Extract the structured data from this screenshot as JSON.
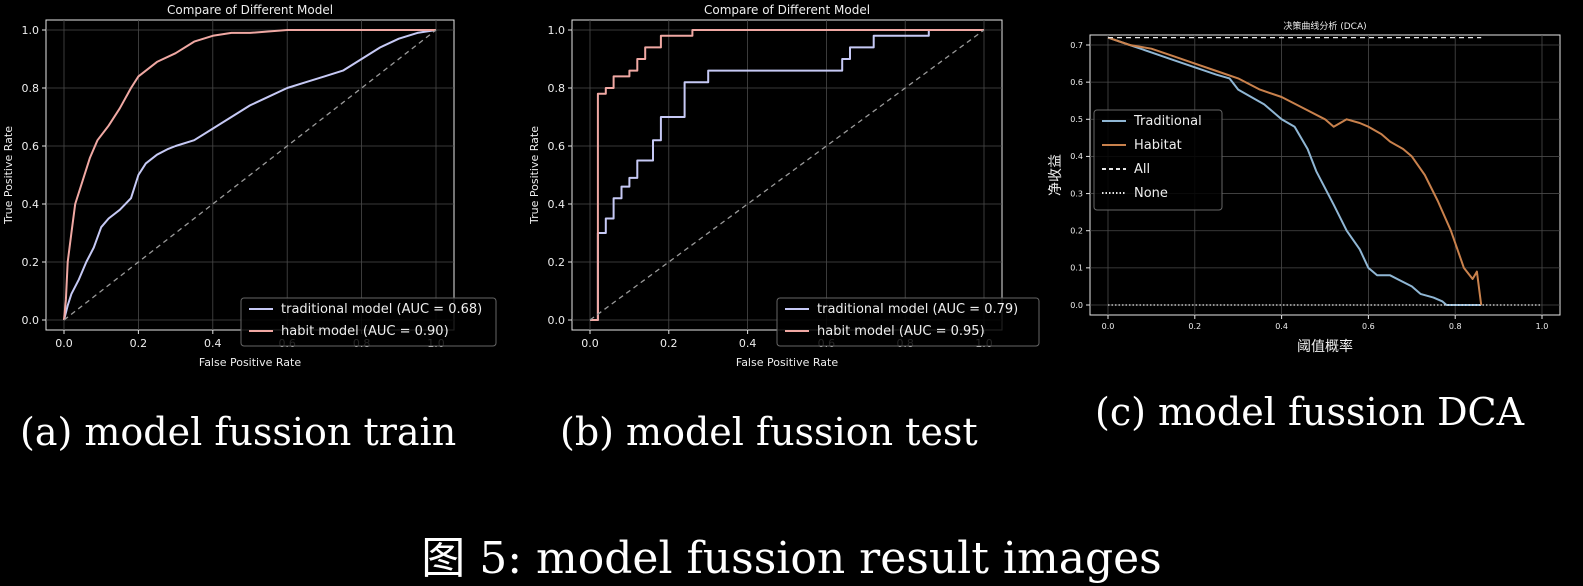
{
  "colors": {
    "traditional": "#c6c9f5",
    "habit": "#f0a8a3",
    "dca_traditional": "#8fb6d4",
    "dca_habitat": "#c9814c",
    "grid": "#4a4a4a",
    "axis": "#e6e6e6"
  },
  "captions": {
    "a": "(a) model fussion train",
    "b": "(b) model fussion test",
    "c": "(c) model fussion DCA",
    "figure": "图 5: model fussion result images"
  },
  "chart_data": [
    {
      "type": "line",
      "title": "Compare of Different Model",
      "xlabel": "False Positive Rate",
      "ylabel": "True Positive Rate",
      "xlim": [
        0,
        1
      ],
      "ylim": [
        0,
        1
      ],
      "xticks": [
        "0.0",
        "0.2",
        "0.4",
        "0.6",
        "0.8",
        "1.0"
      ],
      "yticks": [
        "0.0",
        "0.2",
        "0.4",
        "0.6",
        "0.8",
        "1.0"
      ],
      "grid": true,
      "legend_position": "lower-right",
      "series": [
        {
          "name": "traditional model (AUC = 0.68)",
          "color_key": "traditional",
          "x": [
            0,
            0.01,
            0.02,
            0.04,
            0.06,
            0.08,
            0.1,
            0.12,
            0.15,
            0.18,
            0.2,
            0.22,
            0.25,
            0.28,
            0.3,
            0.35,
            0.4,
            0.45,
            0.5,
            0.55,
            0.6,
            0.65,
            0.7,
            0.75,
            0.8,
            0.85,
            0.9,
            0.95,
            1.0
          ],
          "y": [
            0,
            0.05,
            0.09,
            0.14,
            0.2,
            0.25,
            0.32,
            0.35,
            0.38,
            0.42,
            0.5,
            0.54,
            0.57,
            0.59,
            0.6,
            0.62,
            0.66,
            0.7,
            0.74,
            0.77,
            0.8,
            0.82,
            0.84,
            0.86,
            0.9,
            0.94,
            0.97,
            0.99,
            1.0
          ]
        },
        {
          "name": "habit model (AUC = 0.90)",
          "color_key": "habit",
          "x": [
            0,
            0.005,
            0.01,
            0.02,
            0.03,
            0.05,
            0.07,
            0.09,
            0.12,
            0.15,
            0.18,
            0.2,
            0.25,
            0.3,
            0.35,
            0.4,
            0.45,
            0.5,
            0.6,
            0.7,
            0.8,
            0.9,
            1.0
          ],
          "y": [
            0,
            0.07,
            0.2,
            0.3,
            0.4,
            0.48,
            0.56,
            0.62,
            0.67,
            0.73,
            0.8,
            0.84,
            0.89,
            0.92,
            0.96,
            0.98,
            0.99,
            0.99,
            1.0,
            1.0,
            1.0,
            1.0,
            1.0
          ]
        },
        {
          "name": "",
          "color_key": "grid_diag",
          "dashed": true,
          "x": [
            0,
            1
          ],
          "y": [
            0,
            1
          ]
        }
      ]
    },
    {
      "type": "line",
      "title": "Compare of Different Model",
      "xlabel": "False Positive Rate",
      "ylabel": "True Positive Rate",
      "xlim": [
        0,
        1
      ],
      "ylim": [
        0,
        1
      ],
      "xticks": [
        "0.0",
        "0.2",
        "0.4",
        "0.6",
        "0.8",
        "1.0"
      ],
      "yticks": [
        "0.0",
        "0.2",
        "0.4",
        "0.6",
        "0.8",
        "1.0"
      ],
      "grid": true,
      "legend_position": "lower-right",
      "series": [
        {
          "name": "traditional model (AUC = 0.79)",
          "color_key": "traditional",
          "x": [
            0,
            0.02,
            0.02,
            0.04,
            0.04,
            0.06,
            0.06,
            0.08,
            0.08,
            0.1,
            0.1,
            0.12,
            0.12,
            0.16,
            0.16,
            0.18,
            0.18,
            0.24,
            0.24,
            0.3,
            0.3,
            0.34,
            0.34,
            0.64,
            0.64,
            0.66,
            0.66,
            0.72,
            0.72,
            0.86,
            0.86,
            1.0
          ],
          "y": [
            0,
            0,
            0.3,
            0.3,
            0.35,
            0.35,
            0.42,
            0.42,
            0.46,
            0.46,
            0.49,
            0.49,
            0.55,
            0.55,
            0.62,
            0.62,
            0.7,
            0.7,
            0.82,
            0.82,
            0.86,
            0.86,
            0.86,
            0.86,
            0.9,
            0.9,
            0.94,
            0.94,
            0.98,
            0.98,
            1.0,
            1.0
          ]
        },
        {
          "name": "habit model (AUC = 0.95)",
          "color_key": "habit",
          "x": [
            0,
            0.02,
            0.02,
            0.04,
            0.04,
            0.06,
            0.06,
            0.1,
            0.1,
            0.12,
            0.12,
            0.14,
            0.14,
            0.18,
            0.18,
            0.26,
            0.26,
            1.0
          ],
          "y": [
            0,
            0,
            0.78,
            0.78,
            0.8,
            0.8,
            0.84,
            0.84,
            0.86,
            0.86,
            0.9,
            0.9,
            0.94,
            0.94,
            0.98,
            0.98,
            1.0,
            1.0
          ]
        },
        {
          "name": "",
          "color_key": "grid_diag",
          "dashed": true,
          "x": [
            0,
            1
          ],
          "y": [
            0,
            1
          ]
        }
      ]
    },
    {
      "type": "line",
      "title": "决策曲线分析 (DCA)",
      "xlabel": "阈值概率",
      "ylabel": "净收益",
      "xlim": [
        0,
        1
      ],
      "ylim": [
        0,
        0.7
      ],
      "xticks": [
        "0.0",
        "0.2",
        "0.4",
        "0.6",
        "0.8",
        "1.0"
      ],
      "yticks": [
        "0.0",
        "0.1",
        "0.2",
        "0.3",
        "0.4",
        "0.5",
        "0.6",
        "0.7"
      ],
      "grid": true,
      "legend_position": "lower-left",
      "series": [
        {
          "name": "Traditional",
          "color_key": "dca_traditional",
          "x": [
            0,
            0.05,
            0.1,
            0.15,
            0.2,
            0.25,
            0.28,
            0.3,
            0.33,
            0.36,
            0.4,
            0.43,
            0.46,
            0.48,
            0.52,
            0.55,
            0.58,
            0.6,
            0.62,
            0.65,
            0.7,
            0.72,
            0.75,
            0.77,
            0.78,
            0.8,
            0.86
          ],
          "y": [
            0.72,
            0.7,
            0.68,
            0.66,
            0.64,
            0.62,
            0.61,
            0.58,
            0.56,
            0.54,
            0.5,
            0.48,
            0.42,
            0.36,
            0.27,
            0.2,
            0.15,
            0.1,
            0.08,
            0.08,
            0.05,
            0.03,
            0.02,
            0.01,
            0.0,
            0.0,
            0.0
          ]
        },
        {
          "name": "Habitat",
          "color_key": "dca_habitat",
          "x": [
            0,
            0.05,
            0.1,
            0.15,
            0.2,
            0.25,
            0.3,
            0.35,
            0.4,
            0.45,
            0.5,
            0.52,
            0.55,
            0.58,
            0.6,
            0.63,
            0.65,
            0.68,
            0.7,
            0.73,
            0.76,
            0.79,
            0.82,
            0.84,
            0.85,
            0.86
          ],
          "y": [
            0.72,
            0.7,
            0.69,
            0.67,
            0.65,
            0.63,
            0.61,
            0.58,
            0.56,
            0.53,
            0.5,
            0.48,
            0.5,
            0.49,
            0.48,
            0.46,
            0.44,
            0.42,
            0.4,
            0.35,
            0.28,
            0.2,
            0.1,
            0.07,
            0.09,
            0.0
          ]
        },
        {
          "name": "All",
          "color_key": "axis",
          "dashed": true,
          "x": [
            0,
            0.86
          ],
          "y": [
            0.72,
            0.72
          ]
        },
        {
          "name": "None",
          "color_key": "axis",
          "dotted": true,
          "x": [
            0,
            1.0
          ],
          "y": [
            0,
            0
          ]
        }
      ]
    }
  ]
}
